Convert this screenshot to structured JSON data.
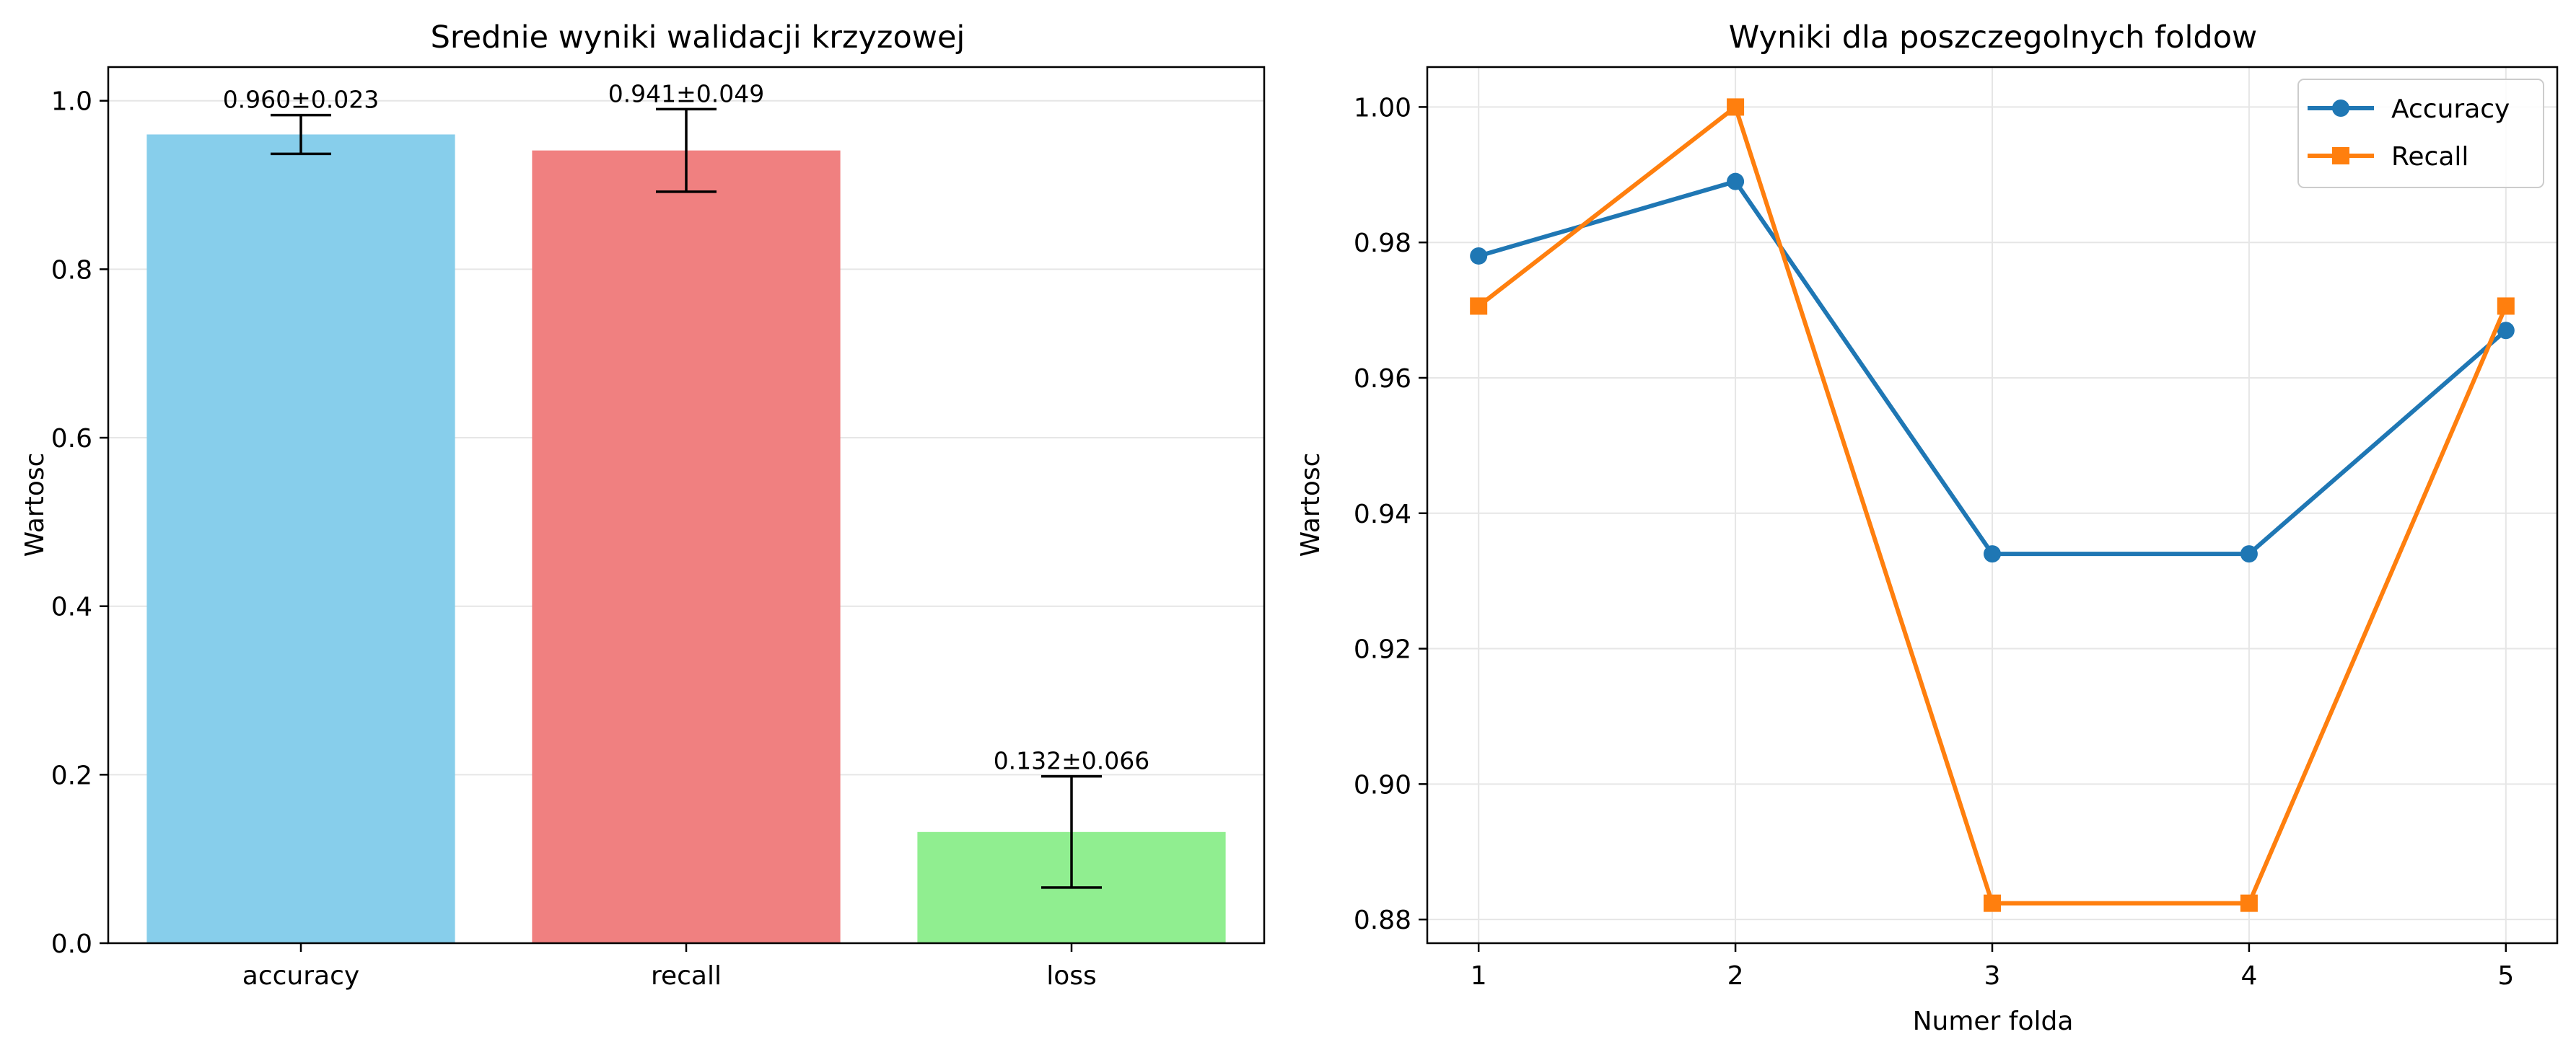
{
  "colors": {
    "accuracy_bar": "#87ceeb",
    "recall_bar": "#f08080",
    "loss_bar": "#90ee90",
    "accuracy_line": "#1f77b4",
    "recall_line": "#ff7f0e",
    "grid": "#e6e6e6",
    "axes": "#000000"
  },
  "chart_data": [
    {
      "type": "bar",
      "title": "Srednie wyniki walidacji krzyzowej",
      "xlabel": "",
      "ylabel": "Wartosc",
      "categories": [
        "accuracy",
        "recall",
        "loss"
      ],
      "values": [
        0.96,
        0.941,
        0.132
      ],
      "errors": [
        0.023,
        0.049,
        0.066
      ],
      "data_labels": [
        "0.960±0.023",
        "0.941±0.049",
        "0.132±0.066"
      ],
      "ylim": [
        0,
        1.04
      ],
      "yticks": [
        0.0,
        0.2,
        0.4,
        0.6,
        0.8,
        1.0
      ],
      "ytick_labels": [
        "0.0",
        "0.2",
        "0.4",
        "0.6",
        "0.8",
        "1.0"
      ],
      "grid": "y",
      "error_bars": true
    },
    {
      "type": "line",
      "title": "Wyniki dla poszczegolnych foldow",
      "xlabel": "Numer folda",
      "ylabel": "Wartosc",
      "x": [
        1,
        2,
        3,
        4,
        5
      ],
      "xtick_labels": [
        "1",
        "2",
        "3",
        "4",
        "5"
      ],
      "series": [
        {
          "name": "Accuracy",
          "marker": "circle",
          "values": [
            0.978,
            0.989,
            0.934,
            0.934,
            0.967
          ]
        },
        {
          "name": "Recall",
          "marker": "square",
          "values": [
            0.9706,
            1.0,
            0.8824,
            0.8824,
            0.9706
          ]
        }
      ],
      "xlim": [
        0.8,
        5.2
      ],
      "ylim": [
        0.8765,
        1.0059
      ],
      "yticks": [
        0.88,
        0.9,
        0.92,
        0.94,
        0.96,
        0.98,
        1.0
      ],
      "ytick_labels": [
        "0.88",
        "0.90",
        "0.92",
        "0.94",
        "0.96",
        "0.98",
        "1.00"
      ],
      "grid": "both",
      "legend_position": "top-right"
    }
  ]
}
